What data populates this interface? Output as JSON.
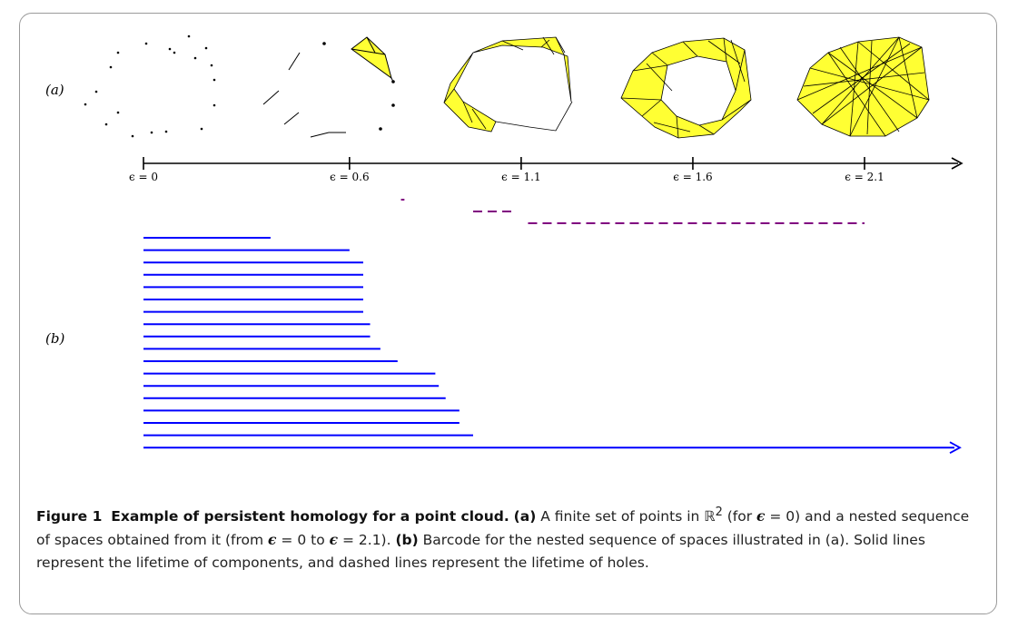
{
  "figure": {
    "panel_a_label": "(a)",
    "panel_b_label": "(b)",
    "axis_ticks": [
      "ϵ = 0",
      "ϵ = 0.6",
      "ϵ = 1.1",
      "ϵ = 1.6",
      "ϵ = 2.1"
    ],
    "filtration_colors": {
      "simplex_fill": "#ffff33",
      "edge": "#000000"
    }
  },
  "chart_data": {
    "type": "barcode",
    "xlim": [
      0,
      2.1
    ],
    "x_ticks": [
      0,
      0.6,
      1.1,
      1.6,
      2.1
    ],
    "series": [
      {
        "name": "components",
        "style": "solid",
        "color": "#0000ff",
        "bars": [
          [
            0,
            0.37
          ],
          [
            0,
            0.6
          ],
          [
            0,
            0.64
          ],
          [
            0,
            0.64
          ],
          [
            0,
            0.64
          ],
          [
            0,
            0.64
          ],
          [
            0,
            0.64
          ],
          [
            0,
            0.66
          ],
          [
            0,
            0.66
          ],
          [
            0,
            0.69
          ],
          [
            0,
            0.74
          ],
          [
            0,
            0.85
          ],
          [
            0,
            0.86
          ],
          [
            0,
            0.88
          ],
          [
            0,
            0.92
          ],
          [
            0,
            0.92
          ],
          [
            0,
            0.96
          ],
          [
            0,
            "inf"
          ]
        ]
      },
      {
        "name": "holes",
        "style": "dashed",
        "color": "#800080",
        "bars": [
          [
            0.75,
            0.76
          ],
          [
            0.96,
            1.08
          ],
          [
            1.12,
            2.1
          ]
        ]
      }
    ]
  },
  "caption": {
    "label": "Figure 1",
    "title": "Example of persistent homology for a point cloud.",
    "part_a_tag": "(a)",
    "part_a_text_1": "A finite set of points in ",
    "real_plane": "ℝ",
    "superscript": "2",
    "part_a_text_2": " (for ",
    "eps_1": "ϵ",
    "part_a_text_3": " = 0) and a nested sequence of spaces obtained from it (from ",
    "eps_2": "ϵ",
    "part_a_text_4": " = 0 to ",
    "eps_3": "ϵ",
    "part_a_text_5": " = 2.1). ",
    "part_b_tag": "(b)",
    "part_b_text": " Barcode for the nested sequence of spaces illustrated in (a). Solid lines represent the lifetime of components, and dashed lines represent the lifetime of holes."
  }
}
